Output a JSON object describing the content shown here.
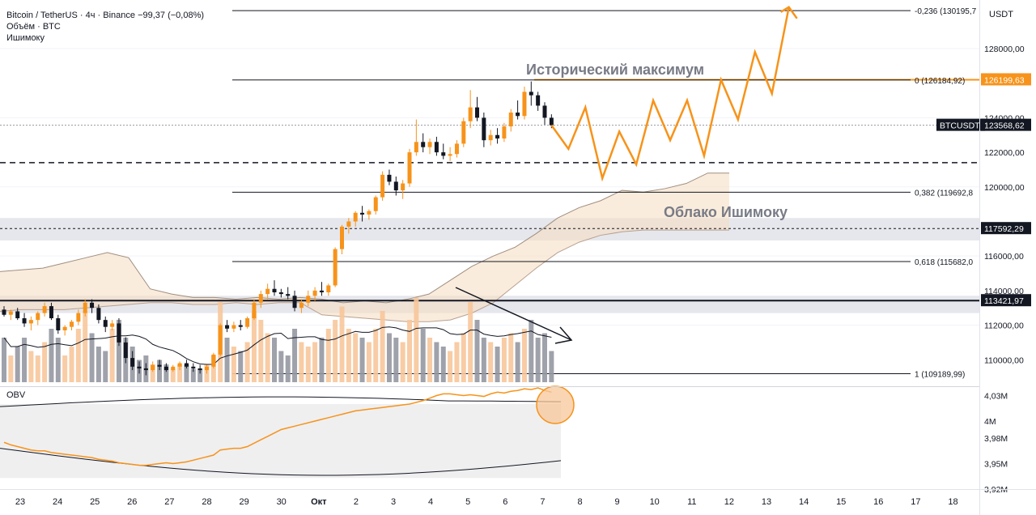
{
  "legend": {
    "title": "Bitcoin / TetherUS · 4ч · Binance",
    "change": "−99,37 (−0,08%)",
    "volume": "Объём · BTC",
    "ichimoku": "Ишимоку"
  },
  "obv_label": "OBV",
  "currency": "USDT",
  "annotations": {
    "ath": "Исторический максимум",
    "cloud": "Облако Ишимоку"
  },
  "price_axis": {
    "ticks": [
      "128000,00",
      "124000,00",
      "122000,00",
      "120000,00",
      "116000,00",
      "114000,00",
      "112000,00",
      "110000,00"
    ],
    "tag_ath": "126199,63",
    "tag_ticker": "BTCUSDT",
    "tag_last": "123568,62",
    "tag_level1": "117592,29",
    "tag_level2": "113421,97"
  },
  "obv_axis": {
    "ticks": [
      "4,03M",
      "4M",
      "3,98M",
      "3,95M",
      "3,92M"
    ]
  },
  "fib_levels": [
    {
      "label": "-0,236 (130195,7",
      "price": 130195.7
    },
    {
      "label": "0 (126184,92)",
      "price": 126184.92
    },
    {
      "label": "0,382 (119692,8",
      "price": 119692.8
    },
    {
      "label": "0,618 (115682,0",
      "price": 115682.0
    },
    {
      "label": "1 (109189,99)",
      "price": 109189.99
    }
  ],
  "time_axis": [
    "23",
    "24",
    "25",
    "26",
    "27",
    "28",
    "29",
    "30",
    "Окт",
    "2",
    "3",
    "4",
    "5",
    "6",
    "7",
    "8",
    "9",
    "10",
    "11",
    "12",
    "13",
    "14",
    "15",
    "16",
    "17",
    "18"
  ],
  "colors": {
    "up": "#f7931a",
    "down": "#131722",
    "projection": "#f7931a",
    "cloud_fill": "#f5dcc0",
    "fib_line": "#131722"
  },
  "chart_data": {
    "type": "candlestick",
    "symbol": "BTCUSDT",
    "interval": "4h",
    "ylim": [
      108700,
      131000
    ],
    "candles": [
      [
        112900,
        113100,
        112500,
        112600
      ],
      [
        112600,
        112900,
        112300,
        112800
      ],
      [
        112800,
        113000,
        112300,
        112400
      ],
      [
        112400,
        112700,
        111900,
        112100
      ],
      [
        112100,
        112500,
        111700,
        112300
      ],
      [
        112300,
        112800,
        112000,
        112700
      ],
      [
        112700,
        113300,
        112500,
        113100
      ],
      [
        113100,
        113300,
        112300,
        112400
      ],
      [
        112400,
        112600,
        111500,
        111700
      ],
      [
        111700,
        112000,
        111400,
        111900
      ],
      [
        111900,
        112300,
        111700,
        112200
      ],
      [
        112200,
        112900,
        112000,
        112700
      ],
      [
        112700,
        113500,
        112500,
        113300
      ],
      [
        113300,
        113500,
        112700,
        113000
      ],
      [
        113000,
        113200,
        112100,
        112300
      ],
      [
        112300,
        112500,
        111600,
        111900
      ],
      [
        111900,
        112300,
        111700,
        112100
      ],
      [
        112100,
        112400,
        110800,
        111000
      ],
      [
        111000,
        111300,
        109800,
        110100
      ],
      [
        110100,
        110500,
        109400,
        109600
      ],
      [
        109600,
        109900,
        109200,
        109500
      ],
      [
        109500,
        109800,
        109100,
        109400
      ],
      [
        109400,
        109900,
        109300,
        109700
      ],
      [
        109700,
        110000,
        109400,
        109600
      ],
      [
        109600,
        109800,
        109300,
        109400
      ],
      [
        109400,
        109700,
        109300,
        109600
      ],
      [
        109600,
        109900,
        109400,
        109800
      ],
      [
        109800,
        110000,
        109500,
        109600
      ],
      [
        109600,
        109800,
        109300,
        109500
      ],
      [
        109500,
        109700,
        109200,
        109400
      ],
      [
        109400,
        109700,
        109200,
        109600
      ],
      [
        109600,
        110400,
        109500,
        110300
      ],
      [
        110300,
        112100,
        110200,
        112000
      ],
      [
        112000,
        112300,
        111600,
        111800
      ],
      [
        111800,
        112200,
        111600,
        112000
      ],
      [
        112000,
        112300,
        111700,
        111900
      ],
      [
        111900,
        112500,
        111800,
        112400
      ],
      [
        112400,
        113500,
        112300,
        113300
      ],
      [
        113300,
        114000,
        113000,
        113800
      ],
      [
        113800,
        114400,
        113500,
        114100
      ],
      [
        114100,
        114600,
        113700,
        113900
      ],
      [
        113900,
        114100,
        113600,
        113800
      ],
      [
        113800,
        114200,
        113500,
        113700
      ],
      [
        113700,
        114000,
        112800,
        113000
      ],
      [
        113000,
        113500,
        112700,
        113300
      ],
      [
        113300,
        114000,
        113100,
        113700
      ],
      [
        113700,
        114200,
        113400,
        114000
      ],
      [
        114000,
        114500,
        113700,
        113900
      ],
      [
        113900,
        114400,
        113700,
        114300
      ],
      [
        114300,
        116500,
        114200,
        116400
      ],
      [
        116400,
        117800,
        116100,
        117700
      ],
      [
        117700,
        118200,
        117300,
        118000
      ],
      [
        118000,
        118600,
        117700,
        118500
      ],
      [
        118500,
        118900,
        118000,
        118400
      ],
      [
        118400,
        118700,
        118100,
        118600
      ],
      [
        118600,
        119500,
        118400,
        119400
      ],
      [
        119400,
        120900,
        119200,
        120700
      ],
      [
        120700,
        121000,
        120100,
        120300
      ],
      [
        120300,
        120600,
        119500,
        119800
      ],
      [
        119800,
        120400,
        119300,
        120200
      ],
      [
        120200,
        122200,
        120000,
        122000
      ],
      [
        122000,
        123900,
        121800,
        122600
      ],
      [
        122600,
        123100,
        122000,
        122300
      ],
      [
        122300,
        122800,
        121900,
        122600
      ],
      [
        122600,
        122900,
        121800,
        122000
      ],
      [
        122000,
        122500,
        121600,
        121800
      ],
      [
        121800,
        122300,
        121500,
        121900
      ],
      [
        121900,
        122700,
        121700,
        122500
      ],
      [
        122500,
        124000,
        122300,
        123800
      ],
      [
        123800,
        125600,
        123400,
        124600
      ],
      [
        124600,
        125200,
        123800,
        124000
      ],
      [
        124000,
        124300,
        122300,
        122700
      ],
      [
        122700,
        123300,
        122400,
        123000
      ],
      [
        123000,
        123400,
        122500,
        122800
      ],
      [
        122800,
        123700,
        122600,
        123500
      ],
      [
        123500,
        124500,
        123200,
        124300
      ],
      [
        124300,
        125000,
        123900,
        124100
      ],
      [
        124100,
        125800,
        123900,
        125500
      ],
      [
        125500,
        126100,
        124700,
        125300
      ],
      [
        125300,
        125500,
        124400,
        124700
      ],
      [
        124700,
        124900,
        123600,
        124000
      ],
      [
        124000,
        124200,
        123400,
        123569
      ]
    ],
    "volume_weights": [
      0.5,
      0.3,
      0.4,
      0.5,
      0.35,
      0.3,
      0.45,
      0.6,
      0.5,
      0.3,
      0.4,
      0.6,
      0.8,
      0.55,
      0.4,
      0.35,
      0.6,
      0.7,
      0.5,
      0.4,
      0.25,
      0.3,
      0.2,
      0.25,
      0.2,
      0.15,
      0.2,
      0.2,
      0.15,
      0.15,
      0.2,
      0.3,
      0.9,
      0.5,
      0.4,
      0.35,
      0.45,
      0.8,
      0.7,
      0.55,
      0.5,
      0.35,
      0.3,
      0.6,
      0.45,
      0.4,
      0.45,
      0.5,
      0.6,
      0.7,
      0.85,
      0.6,
      0.55,
      0.5,
      0.45,
      0.6,
      0.8,
      0.55,
      0.5,
      0.45,
      0.7,
      0.95,
      0.6,
      0.5,
      0.45,
      0.4,
      0.35,
      0.45,
      0.55,
      0.9,
      0.7,
      0.5,
      0.45,
      0.4,
      0.5,
      0.55,
      0.45,
      0.6,
      0.7,
      0.5,
      0.55,
      0.35
    ],
    "projection": [
      123569,
      122200,
      124600,
      120500,
      123200,
      121300,
      125000,
      122700,
      125000,
      121800,
      126200,
      123900,
      127800,
      125400,
      130400
    ],
    "ichimoku_cloud_upper": [
      115100,
      115200,
      115300,
      115600,
      115900,
      116200,
      115900,
      114100,
      113800,
      113600,
      113600,
      113500,
      113600,
      113500,
      113600,
      113500,
      113300,
      113400,
      113300,
      113500,
      113800,
      114600,
      115400,
      116000,
      116500,
      117300,
      118200,
      118800,
      119200,
      119800,
      119700,
      119900,
      120200,
      120800,
      120800
    ],
    "ichimoku_cloud_lower": [
      112800,
      112900,
      112900,
      112900,
      113000,
      113100,
      113200,
      113300,
      113300,
      113200,
      113200,
      113300,
      113200,
      113300,
      113300,
      112600,
      112500,
      112400,
      112300,
      112200,
      112200,
      112300,
      112700,
      113300,
      114300,
      115300,
      116200,
      116800,
      117200,
      117400,
      117500,
      117500,
      117500,
      117500,
      117500
    ],
    "obv_range": [
      3.92,
      4.04
    ],
    "obv": [
      3.975,
      3.972,
      3.97,
      3.968,
      3.966,
      3.965,
      3.965,
      3.963,
      3.962,
      3.961,
      3.96,
      3.959,
      3.958,
      3.957,
      3.955,
      3.954,
      3.953,
      3.951,
      3.95,
      3.949,
      3.948,
      3.948,
      3.949,
      3.95,
      3.951,
      3.95,
      3.951,
      3.952,
      3.954,
      3.956,
      3.958,
      3.96,
      3.966,
      3.967,
      3.968,
      3.968,
      3.97,
      3.974,
      3.978,
      3.982,
      3.986,
      3.99,
      3.992,
      3.994,
      3.996,
      3.998,
      4.0,
      4.002,
      4.004,
      4.006,
      4.008,
      4.01,
      4.012,
      4.013,
      4.014,
      4.015,
      4.016,
      4.017,
      4.018,
      4.019,
      4.02,
      4.022,
      4.024,
      4.027,
      4.03,
      4.032,
      4.032,
      4.031,
      4.03,
      4.031,
      4.03,
      4.029,
      4.032,
      4.034,
      4.033,
      4.035,
      4.036,
      4.038,
      4.037,
      4.039,
      4.036,
      4.034
    ],
    "obv_band_upper": 4.02,
    "obv_band_lower": 3.933,
    "obv_ma": [
      3.985,
      3.952
    ]
  }
}
